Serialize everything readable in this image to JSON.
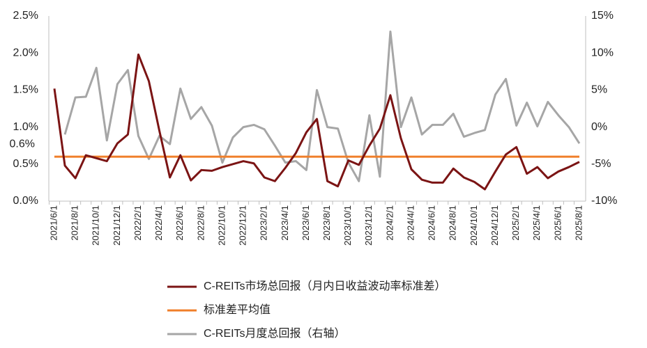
{
  "chart_data": {
    "type": "line",
    "categories": [
      "2021/6/1",
      null,
      "2021/8/1",
      null,
      "2021/10/1",
      null,
      "2021/12/1",
      null,
      "2022/2/1",
      null,
      "2022/4/1",
      null,
      "2022/6/1",
      null,
      "2022/8/1",
      null,
      "2022/10/1",
      null,
      "2022/12/1",
      null,
      "2023/2/1",
      null,
      "2023/4/1",
      null,
      "2023/6/1",
      null,
      "2023/8/1",
      null,
      "2023/10/1",
      null,
      "2023/12/1",
      null,
      "2024/2/1",
      null,
      "2024/4/1",
      null,
      "2024/6/1",
      null,
      "2024/8/1",
      null,
      "2024/10/1",
      null,
      "2024/12/1",
      null,
      "2025/2/1",
      null,
      "2025/4/1",
      null,
      "2025/6/1",
      null,
      "2025/8/1"
    ],
    "series": [
      {
        "name": "C-REITs市场总回报（月内日收益波动率标准差）",
        "color": "#7b1414",
        "axis": "y",
        "values": [
          1.52,
          0.48,
          0.31,
          0.62,
          0.58,
          0.54,
          0.78,
          0.9,
          1.98,
          1.62,
          0.95,
          0.32,
          0.62,
          0.28,
          0.42,
          0.41,
          0.46,
          0.5,
          0.54,
          0.51,
          0.32,
          0.27,
          0.45,
          0.65,
          0.93,
          1.11,
          0.27,
          0.2,
          0.55,
          0.49,
          0.75,
          0.98,
          1.43,
          0.85,
          0.43,
          0.29,
          0.25,
          0.25,
          0.44,
          0.32,
          0.26,
          0.16,
          0.4,
          0.63,
          0.73,
          0.37,
          0.46,
          0.31,
          0.4,
          0.46,
          0.53
        ]
      },
      {
        "name": "标准差平均值",
        "color": "#f07f2a",
        "axis": "y",
        "values": [
          0.6,
          0.6,
          0.6,
          0.6,
          0.6,
          0.6,
          0.6,
          0.6,
          0.6,
          0.6,
          0.6,
          0.6,
          0.6,
          0.6,
          0.6,
          0.6,
          0.6,
          0.6,
          0.6,
          0.6,
          0.6,
          0.6,
          0.6,
          0.6,
          0.6,
          0.6,
          0.6,
          0.6,
          0.6,
          0.6,
          0.6,
          0.6,
          0.6,
          0.6,
          0.6,
          0.6,
          0.6,
          0.6,
          0.6,
          0.6,
          0.6,
          0.6,
          0.6,
          0.6,
          0.6,
          0.6,
          0.6,
          0.6,
          0.6,
          0.6,
          0.6
        ],
        "value_labels": [
          "0.6%"
        ]
      },
      {
        "name": "C-REITs月度总回报（右轴）",
        "color": "#a6a6a6",
        "axis": "y2",
        "values": [
          null,
          -1.0,
          4.0,
          4.1,
          8.0,
          -1.8,
          5.8,
          7.7,
          -1.2,
          -4.3,
          -1.2,
          -2.3,
          5.2,
          1.1,
          2.7,
          0.2,
          -4.8,
          -1.4,
          0.0,
          0.3,
          -0.3,
          -2.5,
          -4.8,
          -4.6,
          -5.8,
          5.0,
          0.0,
          -0.2,
          -4.8,
          -7.3,
          1.6,
          -6.7,
          12.9,
          0.0,
          4.0,
          -1.0,
          0.3,
          0.3,
          1.8,
          -1.3,
          -0.8,
          -0.4,
          4.4,
          6.5,
          0.2,
          3.3,
          0.1,
          3.4,
          1.6,
          0.0,
          -2.2
        ]
      }
    ],
    "ylim": [
      0,
      2.5
    ],
    "yticks": [
      {
        "value": 0,
        "label": "0.0%"
      },
      {
        "value": 0.5,
        "label": "0.5%"
      },
      {
        "value": 1,
        "label": "1.0%"
      },
      {
        "value": 1.5,
        "label": "1.5%"
      },
      {
        "value": 2,
        "label": "2.0%"
      },
      {
        "value": 2.5,
        "label": "2.5%"
      }
    ],
    "y2lim": [
      -10,
      15
    ],
    "y2ticks": [
      {
        "value": -10,
        "label": "-10%"
      },
      {
        "value": -5,
        "label": "-5%"
      },
      {
        "value": 0,
        "label": "0%"
      },
      {
        "value": 5,
        "label": "5%"
      },
      {
        "value": 10,
        "label": "10%"
      },
      {
        "value": 15,
        "label": "15%"
      }
    ],
    "legend": "bottom"
  }
}
